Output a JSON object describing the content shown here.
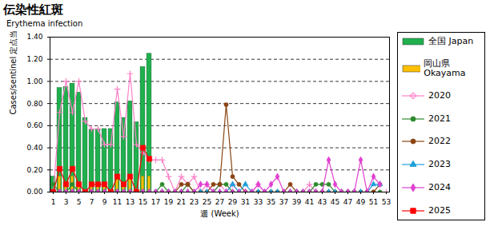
{
  "chart_data": {
    "type": "bar",
    "title": "伝染性紅斑",
    "subtitle": "Erythema infection",
    "ylabel": "Cases/sentinel 定点当り患者数",
    "xlabel": "週 (Week)",
    "x": [
      1,
      2,
      3,
      4,
      5,
      6,
      7,
      8,
      9,
      10,
      11,
      12,
      13,
      14,
      15,
      16,
      17,
      18,
      19,
      20,
      21,
      22,
      23,
      24,
      25,
      26,
      27,
      28,
      29,
      30,
      31,
      32,
      33,
      34,
      35,
      36,
      37,
      38,
      39,
      40,
      41,
      42,
      43,
      44,
      45,
      46,
      47,
      48,
      49,
      50,
      51,
      52,
      53
    ],
    "xlim": [
      0.5,
      53.5
    ],
    "xticks": [
      1,
      3,
      5,
      7,
      9,
      11,
      13,
      15,
      17,
      19,
      21,
      23,
      25,
      27,
      29,
      31,
      33,
      35,
      37,
      39,
      41,
      43,
      45,
      47,
      49,
      51,
      53
    ],
    "ylim": [
      0,
      1.4
    ],
    "yticks": [
      {
        "value": 0,
        "label": "0.00"
      },
      {
        "value": 0.2,
        "label": "0.20"
      },
      {
        "value": 0.4,
        "label": "0.40"
      },
      {
        "value": 0.6,
        "label": "0.60"
      },
      {
        "value": 0.8,
        "label": "0.80"
      },
      {
        "value": 1.0,
        "label": "1.00"
      },
      {
        "value": 1.2,
        "label": "1.20"
      },
      {
        "value": 1.4,
        "label": "1.40"
      }
    ],
    "grid": true,
    "legend": "right",
    "series": [
      {
        "name": "全国 Japan",
        "type": "bar",
        "color": "#1fb04e",
        "values": [
          0.14,
          0.94,
          0.95,
          0.98,
          0.9,
          0.67,
          0.56,
          0.57,
          0.57,
          0.57,
          0.81,
          0.67,
          0.82,
          0.63,
          1.13,
          1.25,
          null,
          null,
          null,
          null,
          null,
          null,
          null,
          null,
          null,
          null,
          null,
          null,
          null,
          null,
          null,
          null,
          null,
          null,
          null,
          null,
          null,
          null,
          null,
          null,
          null,
          null,
          null,
          null,
          null,
          null,
          null,
          null,
          null,
          null,
          null,
          null,
          null
        ]
      },
      {
        "name": "岡山県 Okayama",
        "type": "bar",
        "color": "#ffc000",
        "values": [
          0.02,
          0.14,
          0.07,
          0.14,
          0.07,
          0.02,
          0.07,
          0.07,
          0.07,
          0.02,
          0.14,
          0.07,
          0.14,
          0.02,
          0.14,
          0.14,
          null,
          null,
          null,
          null,
          null,
          null,
          null,
          null,
          null,
          null,
          null,
          null,
          null,
          null,
          null,
          null,
          null,
          null,
          null,
          null,
          null,
          null,
          null,
          null,
          null,
          null,
          null,
          null,
          null,
          null,
          null,
          null,
          null,
          null,
          null,
          null,
          null
        ]
      },
      {
        "name": "2020",
        "type": "line",
        "color": "#ff80c8",
        "marker": "plus",
        "values": [
          0,
          0.72,
          1.0,
          0.72,
          1.0,
          0.64,
          0.57,
          0.57,
          0.43,
          0.43,
          0.93,
          0.5,
          1.07,
          0.43,
          0.36,
          0.29,
          0.29,
          0.29,
          0.14,
          0,
          0.14,
          0.07,
          0.14,
          0,
          0.07,
          0,
          0.07,
          0,
          0.07,
          0,
          0,
          0,
          0.07,
          0,
          0,
          0,
          0,
          0,
          0,
          0,
          0.07,
          0,
          0,
          0,
          0,
          0,
          0,
          0,
          0,
          0,
          0,
          0,
          0
        ]
      },
      {
        "name": "2021",
        "type": "line",
        "color": "#2e8b2e",
        "marker": "circle",
        "values": [
          0.07,
          0,
          0,
          0.07,
          0,
          0,
          0,
          0,
          0,
          0,
          0,
          0,
          0,
          0,
          0,
          0,
          0,
          0.07,
          0,
          0,
          0,
          0.07,
          0,
          0,
          0,
          0,
          0.07,
          0.07,
          0,
          0,
          0,
          0,
          0,
          0,
          0,
          0,
          0,
          0,
          0,
          0,
          0,
          0.07,
          0.07,
          0.07,
          0,
          0,
          0,
          0,
          0,
          0,
          0,
          0,
          null
        ]
      },
      {
        "name": "2022",
        "type": "line",
        "color": "#8b4513",
        "marker": "circle",
        "values": [
          0,
          0,
          0,
          0,
          0,
          0,
          0,
          0,
          0,
          0,
          0,
          0,
          0,
          0,
          0,
          0,
          0,
          0,
          0,
          0,
          0.07,
          0.07,
          0,
          0,
          0,
          0.07,
          0.07,
          0.79,
          0.14,
          0.07,
          0,
          0,
          0,
          0,
          0,
          0,
          0,
          0.07,
          0,
          0,
          0,
          0,
          0,
          0,
          0,
          0,
          0,
          0,
          0,
          0,
          0,
          0.07,
          null
        ]
      },
      {
        "name": "2023",
        "type": "line",
        "color": "#1e9fd8",
        "marker": "triangle",
        "values": [
          0,
          0,
          0,
          0,
          0,
          0,
          0,
          0,
          0,
          0,
          0,
          0,
          0,
          0,
          0,
          0,
          0,
          0,
          0,
          0,
          0,
          0,
          0,
          0,
          0,
          0,
          0,
          0,
          0.07,
          0,
          0.07,
          0,
          0,
          0,
          0,
          0,
          0,
          0,
          0,
          0,
          0,
          0,
          0,
          0,
          0,
          0,
          0,
          0,
          0,
          0,
          0.07,
          0.07,
          null
        ]
      },
      {
        "name": "2024",
        "type": "line",
        "color": "#e040d0",
        "marker": "diamond",
        "values": [
          0,
          0,
          0,
          0,
          0,
          0,
          0,
          0,
          0,
          0,
          0,
          0,
          0,
          0,
          0,
          0,
          0,
          0,
          0,
          0,
          0,
          0,
          0,
          0.07,
          0.07,
          0,
          0,
          0,
          0,
          0,
          0,
          0,
          0.07,
          0,
          0.07,
          0.14,
          0,
          0,
          0,
          0,
          0,
          0,
          0,
          0.29,
          0.07,
          0,
          0,
          0,
          0.29,
          0,
          0.14,
          0.07,
          null
        ]
      },
      {
        "name": "2025",
        "type": "line",
        "color": "#ff0000",
        "marker": "square",
        "values": [
          0,
          0.21,
          0.07,
          0.21,
          0.07,
          0,
          0.07,
          0.07,
          0.07,
          0,
          0.14,
          0.07,
          0.14,
          0,
          0.4,
          0.3,
          null,
          null,
          null,
          null,
          null,
          null,
          null,
          null,
          null,
          null,
          null,
          null,
          null,
          null,
          null,
          null,
          null,
          null,
          null,
          null,
          null,
          null,
          null,
          null,
          null,
          null,
          null,
          null,
          null,
          null,
          null,
          null,
          null,
          null,
          null,
          null,
          null
        ]
      }
    ]
  }
}
